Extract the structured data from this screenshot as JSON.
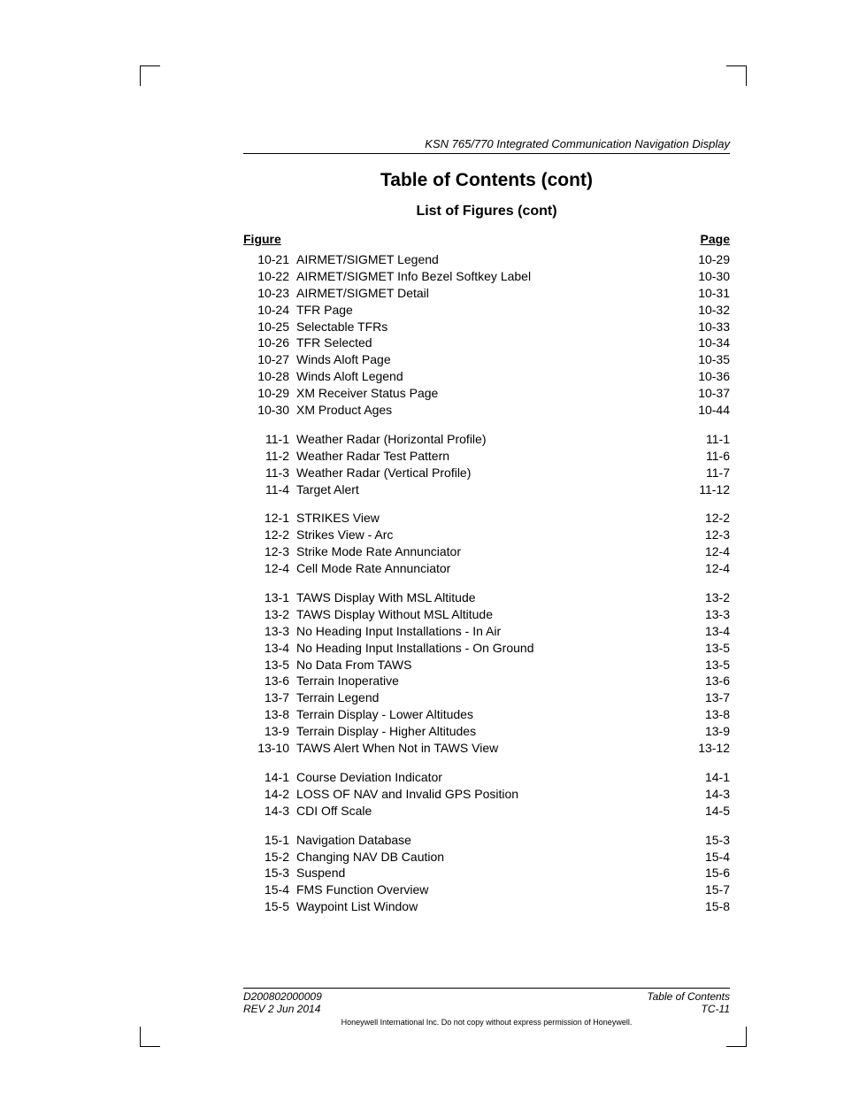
{
  "header": {
    "doc_title": "KSN 765/770 Integrated Communication Navigation Display"
  },
  "titles": {
    "main": "Table of Contents (cont)",
    "sub": "List of Figures (cont)"
  },
  "columns": {
    "figure": "Figure",
    "page": "Page"
  },
  "style": {
    "body_fontsize": 14,
    "title_fontsize": 21,
    "subtitle_fontsize": 16,
    "text_color": "#000000",
    "background": "#ffffff",
    "rule_color": "#000000"
  },
  "groups": [
    [
      {
        "fig": "10-21",
        "title": "AIRMET/SIGMET Legend",
        "page": "10-29"
      },
      {
        "fig": "10-22",
        "title": "AIRMET/SIGMET Info Bezel Softkey Label",
        "page": "10-30"
      },
      {
        "fig": "10-23",
        "title": "AIRMET/SIGMET Detail",
        "page": "10-31"
      },
      {
        "fig": "10-24",
        "title": "TFR Page",
        "page": "10-32"
      },
      {
        "fig": "10-25",
        "title": "Selectable TFRs",
        "page": "10-33"
      },
      {
        "fig": "10-26",
        "title": "TFR Selected",
        "page": "10-34"
      },
      {
        "fig": "10-27",
        "title": "Winds Aloft Page",
        "page": "10-35"
      },
      {
        "fig": "10-28",
        "title": "Winds Aloft Legend",
        "page": "10-36"
      },
      {
        "fig": "10-29",
        "title": "XM Receiver Status Page",
        "page": "10-37"
      },
      {
        "fig": "10-30",
        "title": "XM Product Ages",
        "page": "10-44"
      }
    ],
    [
      {
        "fig": "11-1",
        "title": "Weather Radar (Horizontal Profile)",
        "page": "11-1"
      },
      {
        "fig": "11-2",
        "title": "Weather Radar Test Pattern",
        "page": "11-6"
      },
      {
        "fig": "11-3",
        "title": "Weather Radar (Vertical Profile)",
        "page": "11-7"
      },
      {
        "fig": "11-4",
        "title": "Target Alert",
        "page": "11-12"
      }
    ],
    [
      {
        "fig": "12-1",
        "title": "STRIKES View",
        "page": "12-2"
      },
      {
        "fig": "12-2",
        "title": "Strikes View - Arc",
        "page": "12-3"
      },
      {
        "fig": "12-3",
        "title": "Strike Mode Rate Annunciator",
        "page": "12-4"
      },
      {
        "fig": "12-4",
        "title": "Cell Mode Rate Annunciator",
        "page": "12-4"
      }
    ],
    [
      {
        "fig": "13-1",
        "title": "TAWS Display With MSL Altitude",
        "page": "13-2"
      },
      {
        "fig": "13-2",
        "title": "TAWS Display Without MSL Altitude",
        "page": "13-3"
      },
      {
        "fig": "13-3",
        "title": "No Heading Input Installations - In Air",
        "page": "13-4"
      },
      {
        "fig": "13-4",
        "title": "No Heading Input Installations - On Ground",
        "page": "13-5"
      },
      {
        "fig": "13-5",
        "title": "No Data From TAWS",
        "page": "13-5"
      },
      {
        "fig": "13-6",
        "title": "Terrain Inoperative",
        "page": "13-6"
      },
      {
        "fig": "13-7",
        "title": "Terrain Legend",
        "page": "13-7"
      },
      {
        "fig": "13-8",
        "title": "Terrain Display - Lower Altitudes",
        "page": "13-8"
      },
      {
        "fig": "13-9",
        "title": "Terrain Display - Higher Altitudes",
        "page": "13-9"
      },
      {
        "fig": "13-10",
        "title": "TAWS Alert When Not in TAWS View",
        "page": "13-12"
      }
    ],
    [
      {
        "fig": "14-1",
        "title": "Course Deviation Indicator",
        "page": "14-1"
      },
      {
        "fig": "14-2",
        "title": "LOSS OF NAV and Invalid GPS Position",
        "page": "14-3"
      },
      {
        "fig": "14-3",
        "title": "CDI Off Scale",
        "page": "14-5"
      }
    ],
    [
      {
        "fig": "15-1",
        "title": "Navigation Database",
        "page": "15-3"
      },
      {
        "fig": "15-2",
        "title": "Changing NAV DB Caution",
        "page": "15-4"
      },
      {
        "fig": "15-3",
        "title": "Suspend",
        "page": "15-6"
      },
      {
        "fig": "15-4",
        "title": "FMS Function Overview",
        "page": "15-7"
      },
      {
        "fig": "15-5",
        "title": "Waypoint List Window",
        "page": "15-8"
      }
    ]
  ],
  "footer": {
    "docnum": "D200802000009",
    "section": "Table of Contents",
    "rev": "REV 2   Jun 2014",
    "pagenum": "TC-11",
    "note": "Honeywell International Inc. Do not copy without express permission of Honeywell."
  }
}
